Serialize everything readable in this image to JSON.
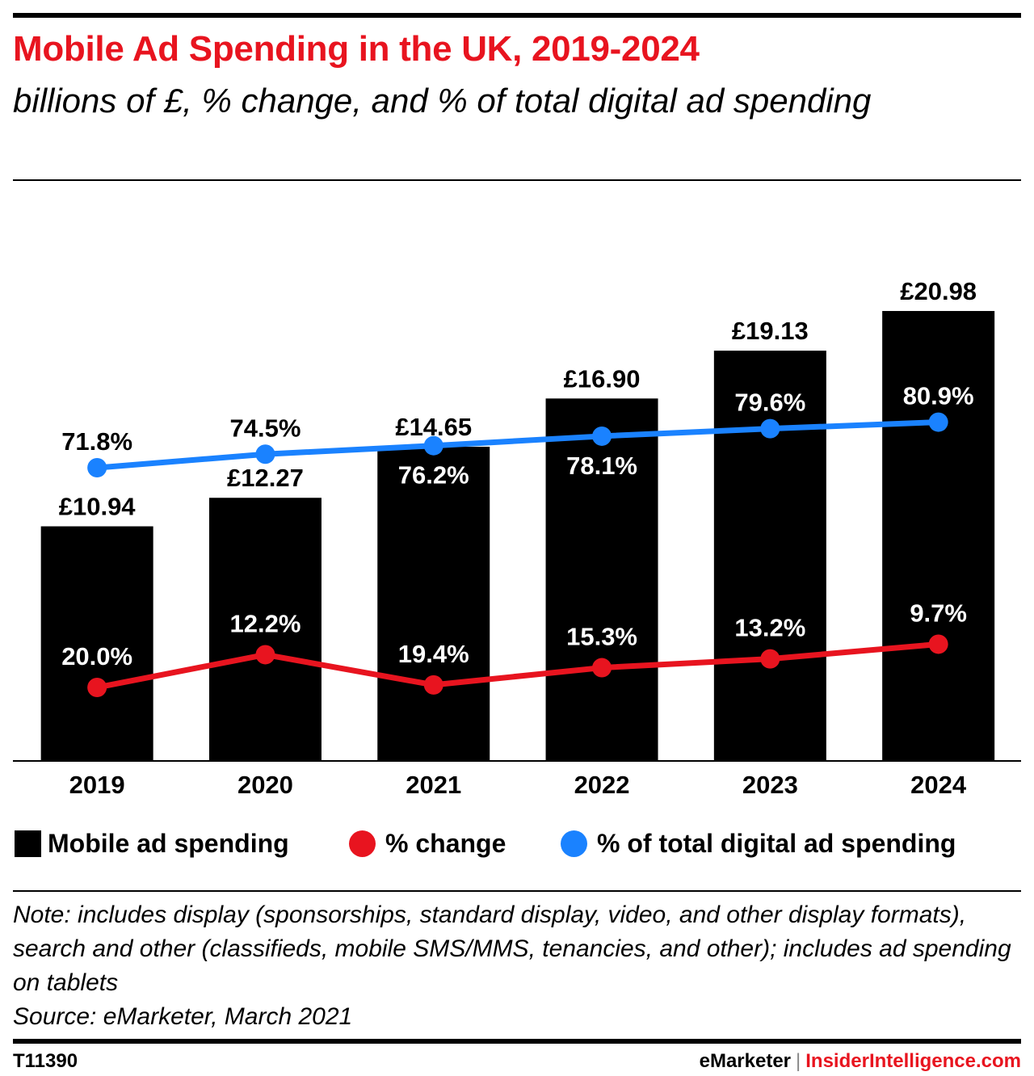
{
  "header": {
    "title": "Mobile Ad Spending in the UK, 2019-2024",
    "subtitle": "billions of £, % change, and % of total digital ad spending"
  },
  "chart_data": {
    "type": "bar",
    "categories": [
      "2019",
      "2020",
      "2021",
      "2022",
      "2023",
      "2024"
    ],
    "series": [
      {
        "name": "Mobile ad spending",
        "type": "bar",
        "color": "#000000",
        "values": [
          10.94,
          12.27,
          14.65,
          16.9,
          19.13,
          20.98
        ],
        "labels": [
          "£10.94",
          "£12.27",
          "£14.65",
          "£16.90",
          "£19.13",
          "£20.98"
        ]
      },
      {
        "name": "% change",
        "type": "line",
        "color": "#e8141f",
        "values": [
          20.0,
          12.2,
          19.4,
          15.3,
          13.2,
          9.7
        ],
        "labels": [
          "20.0%",
          "12.2%",
          "19.4%",
          "15.3%",
          "13.2%",
          "9.7%"
        ]
      },
      {
        "name": "% of total digital ad spending",
        "type": "line",
        "color": "#1a82ff",
        "values": [
          71.8,
          74.5,
          76.2,
          78.1,
          79.6,
          80.9
        ],
        "labels": [
          "71.8%",
          "74.5%",
          "76.2%",
          "78.1%",
          "79.6%",
          "80.9%"
        ]
      }
    ],
    "gridlines": false,
    "legend": "bottom"
  },
  "footer": {
    "note": "Note: includes display (sponsorships, standard display, video, and other display formats), search and other (classifieds, mobile SMS/MMS, tenancies, and other); includes ad spending on tablets",
    "source": "Source: eMarketer, March 2021",
    "code": "T11390",
    "brand_left": "eMarketer",
    "brand_sep": "|",
    "brand_right": "InsiderIntelligence.com"
  }
}
